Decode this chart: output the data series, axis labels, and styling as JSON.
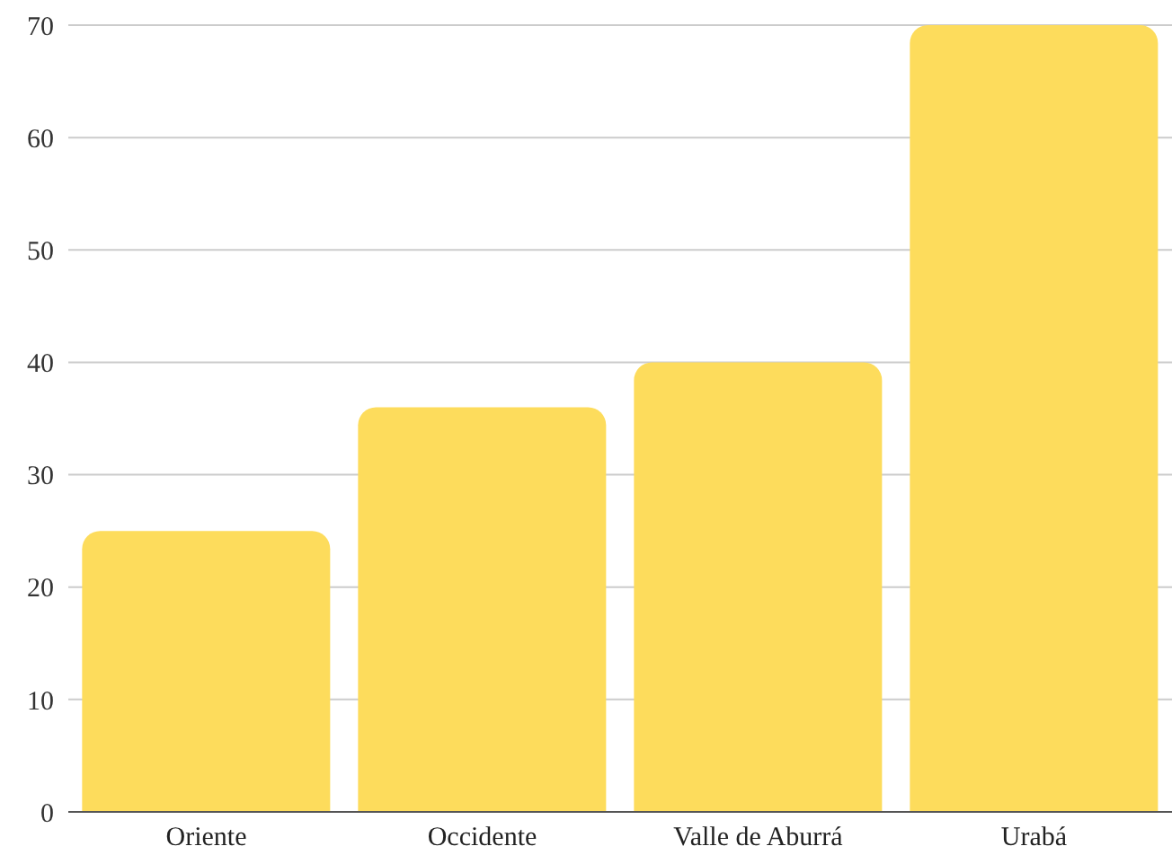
{
  "chart_data": {
    "type": "bar",
    "categories": [
      "Oriente",
      "Occidente",
      "Valle de Aburrá",
      "Urabá"
    ],
    "values": [
      25,
      36,
      40,
      70
    ],
    "color": "#fddc5c",
    "ylim": [
      0,
      70
    ],
    "yticks": [
      0,
      10,
      20,
      30,
      40,
      50,
      60,
      70
    ],
    "grid": "y",
    "legend": false
  }
}
